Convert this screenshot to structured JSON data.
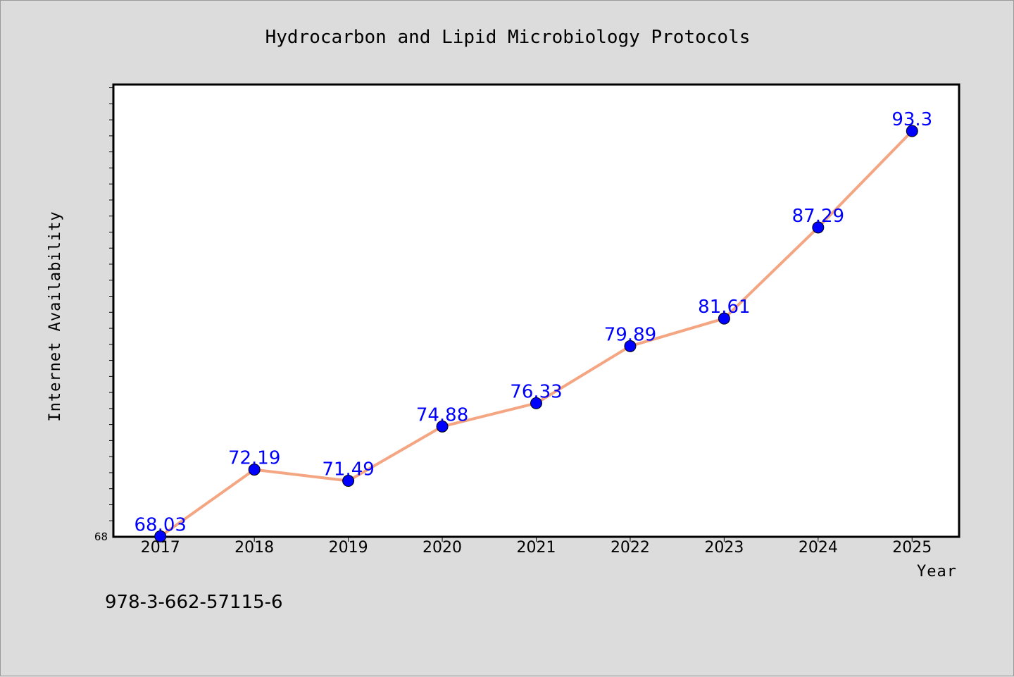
{
  "chart_data": {
    "type": "line",
    "title": "Hydrocarbon and Lipid Microbiology Protocols",
    "xlabel": "Year",
    "ylabel": "Internet Availability",
    "categories": [
      "2017",
      "2018",
      "2019",
      "2020",
      "2021",
      "2022",
      "2023",
      "2024",
      "2025"
    ],
    "series": [
      {
        "values": [
          68.03,
          72.19,
          71.49,
          74.88,
          76.33,
          79.89,
          81.61,
          87.29,
          93.3
        ],
        "data_labels": [
          "68.03",
          "72.19",
          "71.49",
          "74.88",
          "76.33",
          "79.89",
          "81.61",
          "87.29",
          "93.3"
        ],
        "line_color": "#f4a582",
        "marker_color": "#0000ff"
      }
    ],
    "y_tick_labels": [
      "68"
    ],
    "ylim": [
      68,
      96.2
    ],
    "x_range": [
      2016.5,
      2025.5
    ],
    "grid": false,
    "plot_background": "#ffffff",
    "page_background": "#dcdcdc"
  },
  "footnote": "978-3-662-57115-6"
}
